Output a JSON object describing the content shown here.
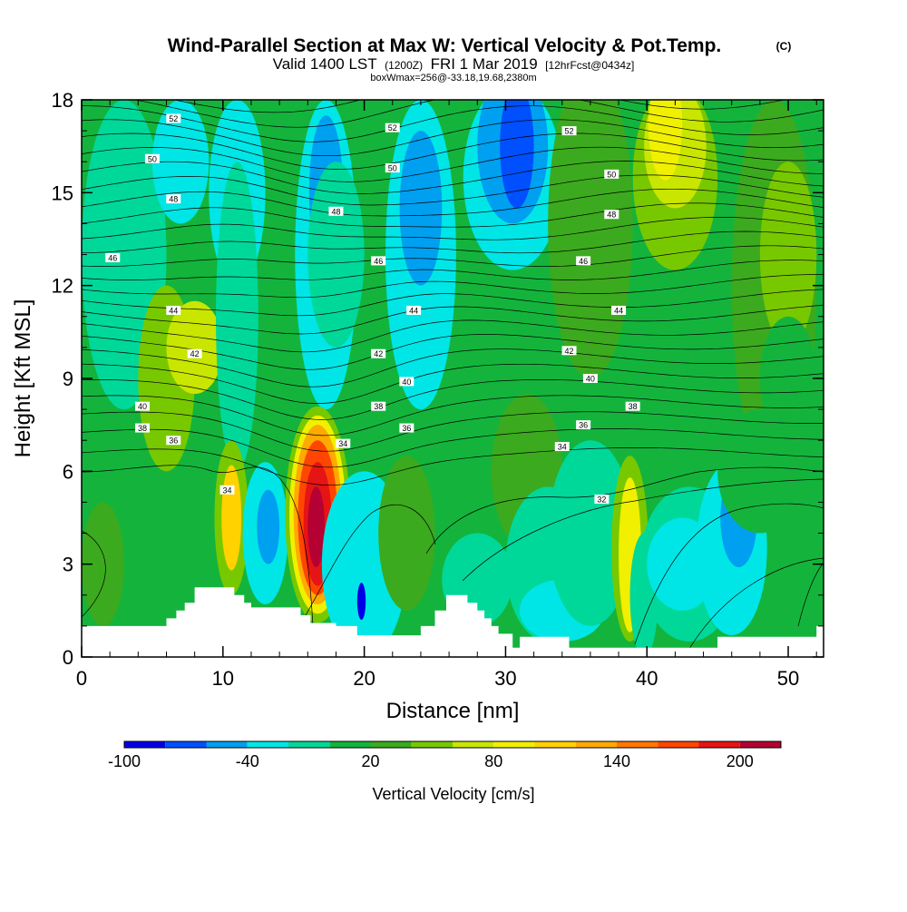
{
  "titles": {
    "main": "Wind-Parallel Section at Max W: Vertical Velocity & Pot.Temp.",
    "copyright": "(C)",
    "valid_a": "Valid 1400 LST",
    "valid_b": "(1200Z)",
    "valid_c": "FRI 1 Mar 2019",
    "valid_d": "[12hrFcst@0434z]",
    "box": "boxWmax=256@-33.18,19.68,2380m"
  },
  "chart_data": {
    "type": "heatmap",
    "xlabel": "Distance [nm]",
    "ylabel": "Height [Kft MSL]",
    "xlim": [
      0,
      52.5
    ],
    "ylim": [
      0,
      18
    ],
    "xticks": [
      0,
      10,
      20,
      30,
      40,
      50
    ],
    "yticks": [
      0,
      3,
      6,
      9,
      12,
      15,
      18
    ],
    "colorbar": {
      "label": "Vertical Velocity [cm/s]",
      "bounds": [
        -100,
        -80,
        -60,
        -40,
        -20,
        0,
        20,
        40,
        60,
        80,
        100,
        120,
        140,
        160,
        180,
        200,
        220
      ],
      "tick_labels": [
        "-100",
        "-40",
        "20",
        "80",
        "140",
        "200"
      ],
      "tick_values": [
        -100,
        -40,
        20,
        80,
        140,
        200
      ],
      "colors": [
        "#0000e6",
        "#0050ff",
        "#00a0f0",
        "#00e6e6",
        "#00d89a",
        "#14b43c",
        "#3caa1e",
        "#78c800",
        "#c8e600",
        "#f0f000",
        "#ffd200",
        "#ffaa00",
        "#ff7800",
        "#ff4600",
        "#e61414",
        "#b40032"
      ]
    },
    "theta_contours": {
      "units": "K",
      "labels": [
        {
          "text": "52",
          "x": 6.5,
          "y": 17.4
        },
        {
          "text": "50",
          "x": 5.0,
          "y": 16.1
        },
        {
          "text": "48",
          "x": 6.5,
          "y": 14.8
        },
        {
          "text": "46",
          "x": 2.2,
          "y": 12.9
        },
        {
          "text": "44",
          "x": 6.5,
          "y": 11.2
        },
        {
          "text": "42",
          "x": 8.0,
          "y": 9.8
        },
        {
          "text": "40",
          "x": 4.3,
          "y": 8.1
        },
        {
          "text": "38",
          "x": 4.3,
          "y": 7.4
        },
        {
          "text": "36",
          "x": 6.5,
          "y": 7.0
        },
        {
          "text": "34",
          "x": 10.3,
          "y": 5.4
        },
        {
          "text": "52",
          "x": 22.0,
          "y": 17.1
        },
        {
          "text": "50",
          "x": 22.0,
          "y": 15.8
        },
        {
          "text": "48",
          "x": 18.0,
          "y": 14.4
        },
        {
          "text": "46",
          "x": 21.0,
          "y": 12.8
        },
        {
          "text": "44",
          "x": 23.5,
          "y": 11.2
        },
        {
          "text": "42",
          "x": 21.0,
          "y": 9.8
        },
        {
          "text": "40",
          "x": 23.0,
          "y": 8.9
        },
        {
          "text": "38",
          "x": 21.0,
          "y": 8.1
        },
        {
          "text": "36",
          "x": 23.0,
          "y": 7.4
        },
        {
          "text": "34",
          "x": 18.5,
          "y": 6.9
        },
        {
          "text": "52",
          "x": 34.5,
          "y": 17.0
        },
        {
          "text": "50",
          "x": 37.5,
          "y": 15.6
        },
        {
          "text": "48",
          "x": 37.5,
          "y": 14.3
        },
        {
          "text": "46",
          "x": 35.5,
          "y": 12.8
        },
        {
          "text": "44",
          "x": 38.0,
          "y": 11.2
        },
        {
          "text": "42",
          "x": 34.5,
          "y": 9.9
        },
        {
          "text": "40",
          "x": 36.0,
          "y": 9.0
        },
        {
          "text": "38",
          "x": 39.0,
          "y": 8.1
        },
        {
          "text": "36",
          "x": 35.5,
          "y": 7.5
        },
        {
          "text": "34",
          "x": 34.0,
          "y": 6.8
        },
        {
          "text": "32",
          "x": 36.8,
          "y": 5.1
        }
      ]
    },
    "terrain_kft": [
      [
        0,
        1
      ],
      [
        6,
        1
      ],
      [
        6,
        1.25
      ],
      [
        6.7,
        1.25
      ],
      [
        6.7,
        1.5
      ],
      [
        7.3,
        1.5
      ],
      [
        7.3,
        1.75
      ],
      [
        8,
        1.75
      ],
      [
        8,
        2.25
      ],
      [
        10.8,
        2.25
      ],
      [
        10.8,
        2
      ],
      [
        11.5,
        2
      ],
      [
        11.5,
        1.75
      ],
      [
        12,
        1.75
      ],
      [
        12,
        1.6
      ],
      [
        15.5,
        1.6
      ],
      [
        15.5,
        1.35
      ],
      [
        16.2,
        1.35
      ],
      [
        16.2,
        1.1
      ],
      [
        18,
        1.1
      ],
      [
        18,
        1.0
      ],
      [
        19.5,
        1.0
      ],
      [
        19.5,
        0.7
      ],
      [
        24,
        0.7
      ],
      [
        24,
        1.0
      ],
      [
        25,
        1.0
      ],
      [
        25,
        1.5
      ],
      [
        25.8,
        1.5
      ],
      [
        25.8,
        2.0
      ],
      [
        27.3,
        2.0
      ],
      [
        27.3,
        1.75
      ],
      [
        28,
        1.75
      ],
      [
        28,
        1.5
      ],
      [
        28.5,
        1.5
      ],
      [
        28.5,
        1.25
      ],
      [
        29,
        1.25
      ],
      [
        29,
        1.0
      ],
      [
        29.5,
        1.0
      ],
      [
        29.5,
        0.75
      ],
      [
        30.5,
        0.75
      ],
      [
        30.5,
        0.3
      ],
      [
        31,
        0.3
      ],
      [
        31,
        0.65
      ],
      [
        34.5,
        0.65
      ],
      [
        34.5,
        0.3
      ],
      [
        45,
        0.3
      ],
      [
        45,
        0.65
      ],
      [
        52,
        0.65
      ],
      [
        52,
        1.0
      ],
      [
        52.5,
        1.0
      ]
    ]
  }
}
